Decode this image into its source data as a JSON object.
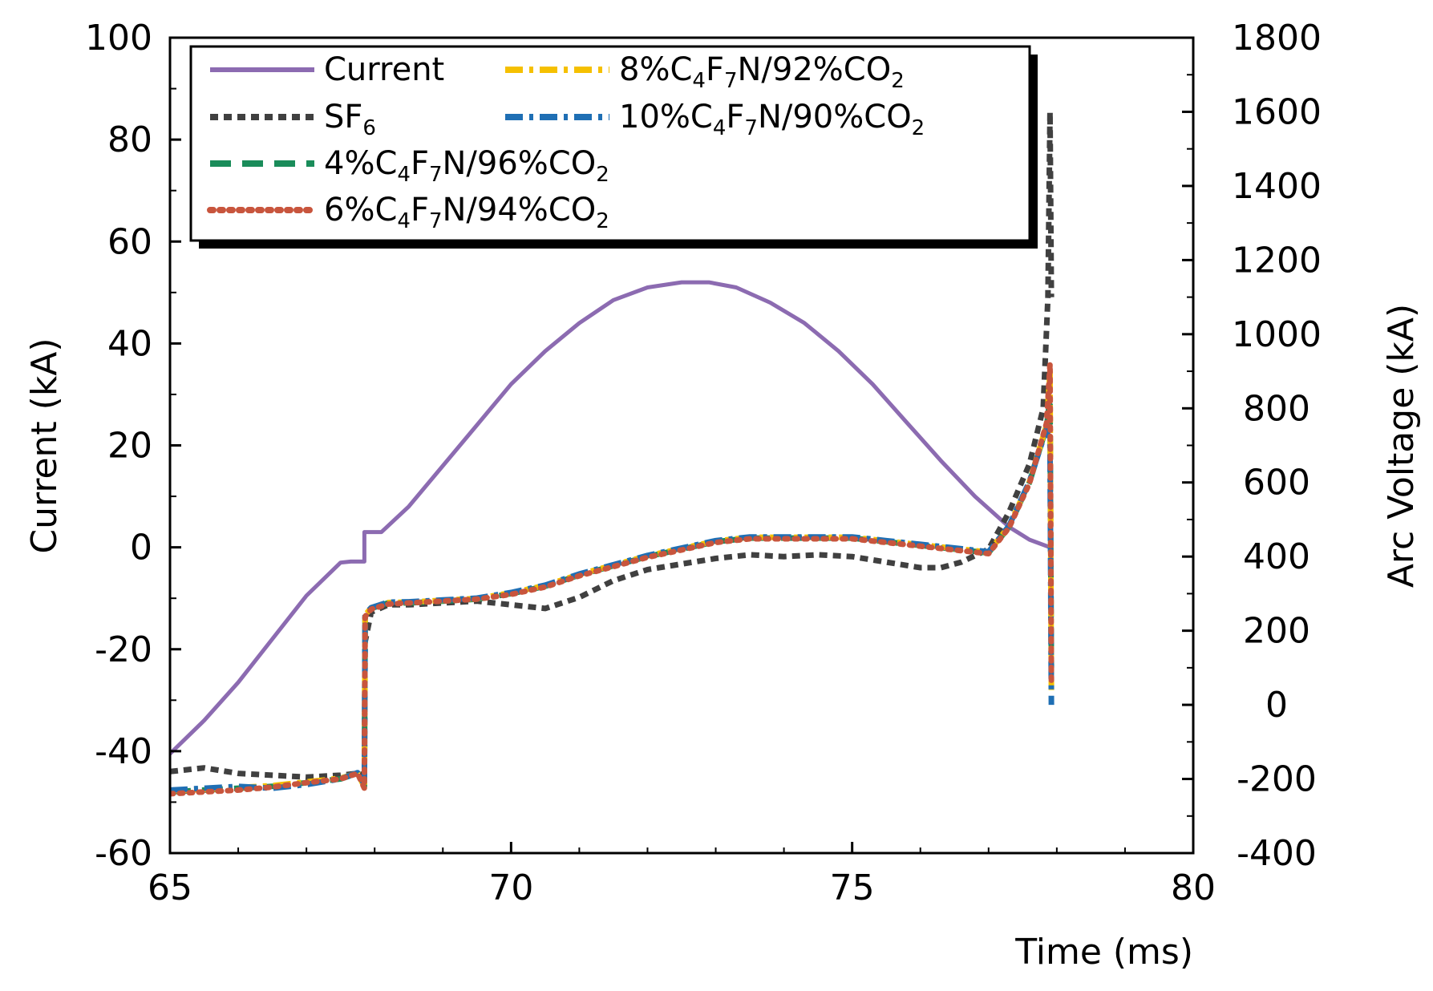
{
  "chart_data": {
    "type": "line",
    "title": "",
    "xlabel": "Time (ms)",
    "ylabel": "Current (kA)",
    "y2label": "Arc Voltage (kA)",
    "xlim": [
      65,
      80
    ],
    "ylim": [
      -60,
      100
    ],
    "y2lim": [
      -400,
      1800
    ],
    "x_ticks": [
      65,
      70,
      75,
      80
    ],
    "y_ticks": [
      -60,
      -40,
      -20,
      0,
      20,
      40,
      60,
      80,
      100
    ],
    "y2_ticks": [
      -400,
      -200,
      0,
      200,
      400,
      600,
      800,
      1000,
      1200,
      1400,
      1600,
      1800
    ],
    "grid": false,
    "legend_position": "top-left",
    "series": [
      {
        "name": "Current",
        "legend_main": "Current",
        "legend_parts": [],
        "axis": "left",
        "color": "#8c6bb1",
        "style": "solid",
        "x": [
          65,
          65.5,
          66,
          66.5,
          67,
          67.5,
          67.65,
          67.85,
          67.85,
          68.1,
          68.5,
          69,
          69.5,
          70,
          70.5,
          71,
          71.5,
          72,
          72.5,
          72.9,
          73.3,
          73.8,
          74.3,
          74.8,
          75.3,
          75.8,
          76.3,
          76.8,
          77.3,
          77.6,
          77.9
        ],
        "y": [
          -40.5,
          -34,
          -26.5,
          -18,
          -9.5,
          -3,
          -2.8,
          -2.8,
          3,
          3,
          8,
          16,
          24,
          32,
          38.5,
          44,
          48.5,
          51,
          52,
          52,
          51,
          48,
          44,
          38.5,
          32,
          24.5,
          17,
          10,
          4,
          1.5,
          0
        ]
      },
      {
        "name": "SF6",
        "legend_main": "SF",
        "legend_parts": [
          {
            "t": "6",
            "sub": true
          }
        ],
        "axis": "right",
        "color": "#404040",
        "style": "dashed",
        "x": [
          65,
          65.5,
          66,
          66.5,
          67,
          67.5,
          67.75,
          67.85,
          67.86,
          67.95,
          68.2,
          68.5,
          69,
          69.5,
          70,
          70.5,
          71,
          71.5,
          72,
          72.5,
          73,
          73.5,
          74,
          74.5,
          75,
          75.5,
          76,
          76.3,
          76.6,
          77,
          77.3,
          77.6,
          77.8,
          77.87,
          77.9,
          77.92
        ],
        "y": [
          -180,
          -170,
          -185,
          -190,
          -195,
          -190,
          -185,
          -190,
          170,
          250,
          270,
          270,
          275,
          280,
          270,
          260,
          290,
          335,
          365,
          380,
          395,
          405,
          400,
          405,
          400,
          385,
          370,
          370,
          385,
          420,
          520,
          650,
          800,
          1100,
          1600,
          1100
        ]
      },
      {
        "name": "4%C4F7N/96%CO2",
        "legend_main": "4%C",
        "legend_parts": [
          {
            "t": "4",
            "sub": true
          },
          {
            "t": "F",
            "sub": false
          },
          {
            "t": "7",
            "sub": true
          },
          {
            "t": "N/96%CO",
            "sub": false
          },
          {
            "t": "2",
            "sub": true
          }
        ],
        "axis": "right",
        "color": "#1a8c5a",
        "style": "dash",
        "x": [
          65,
          65.5,
          66,
          66.5,
          67,
          67.5,
          67.75,
          67.85,
          67.86,
          67.95,
          68.2,
          68.5,
          69,
          69.5,
          70,
          70.5,
          71,
          71.5,
          72,
          72.5,
          73,
          73.5,
          74,
          74.5,
          75,
          75.5,
          76,
          76.5,
          77,
          77.3,
          77.6,
          77.85,
          77.9,
          77.92
        ],
        "y": [
          -235,
          -230,
          -225,
          -220,
          -210,
          -200,
          -185,
          -220,
          240,
          260,
          275,
          275,
          280,
          285,
          300,
          320,
          350,
          375,
          400,
          420,
          440,
          450,
          450,
          450,
          450,
          440,
          430,
          420,
          410,
          480,
          600,
          750,
          830,
          100
        ]
      },
      {
        "name": "6%C4F7N/94%CO2",
        "legend_main": "6%C",
        "legend_parts": [
          {
            "t": "4",
            "sub": true
          },
          {
            "t": "F",
            "sub": false
          },
          {
            "t": "7",
            "sub": true
          },
          {
            "t": "N/94%CO",
            "sub": false
          },
          {
            "t": "2",
            "sub": true
          }
        ],
        "axis": "right",
        "color": "#c8553d",
        "style": "dot",
        "x": [
          65,
          65.5,
          66,
          66.5,
          67,
          67.5,
          67.75,
          67.85,
          67.86,
          67.95,
          68.2,
          68.5,
          69,
          69.5,
          70,
          70.5,
          71,
          71.5,
          72,
          72.5,
          73,
          73.5,
          74,
          74.5,
          75,
          75.5,
          76,
          76.5,
          77,
          77.3,
          77.6,
          77.85,
          77.9,
          77.92
        ],
        "y": [
          -240,
          -235,
          -230,
          -222,
          -210,
          -200,
          -185,
          -225,
          238,
          258,
          272,
          275,
          280,
          285,
          298,
          318,
          348,
          373,
          398,
          418,
          438,
          448,
          448,
          448,
          448,
          438,
          428,
          418,
          408,
          478,
          598,
          760,
          920,
          60
        ]
      },
      {
        "name": "8%C4F7N/92%CO2",
        "legend_main": "8%C",
        "legend_parts": [
          {
            "t": "4",
            "sub": true
          },
          {
            "t": "F",
            "sub": false
          },
          {
            "t": "7",
            "sub": true
          },
          {
            "t": "N/92%CO",
            "sub": false
          },
          {
            "t": "2",
            "sub": true
          }
        ],
        "axis": "right",
        "color": "#f5c000",
        "style": "dashdot",
        "x": [
          65,
          65.5,
          66,
          66.5,
          67,
          67.5,
          67.75,
          67.85,
          67.86,
          67.95,
          68.2,
          68.5,
          69,
          69.5,
          70,
          70.5,
          71,
          71.5,
          72,
          72.5,
          73,
          73.5,
          74,
          74.5,
          75,
          75.5,
          76,
          76.5,
          77,
          77.3,
          77.6,
          77.85,
          77.9,
          77.92
        ],
        "y": [
          -232,
          -228,
          -223,
          -218,
          -208,
          -198,
          -184,
          -222,
          242,
          262,
          276,
          277,
          282,
          287,
          302,
          322,
          352,
          377,
          402,
          422,
          442,
          452,
          452,
          452,
          452,
          442,
          432,
          422,
          412,
          482,
          602,
          755,
          900,
          40
        ]
      },
      {
        "name": "10%C4F7N/90%CO2",
        "legend_main": "10%C",
        "legend_parts": [
          {
            "t": "4",
            "sub": true
          },
          {
            "t": "F",
            "sub": false
          },
          {
            "t": "7",
            "sub": true
          },
          {
            "t": "N/90%CO",
            "sub": false
          },
          {
            "t": "2",
            "sub": true
          }
        ],
        "axis": "right",
        "color": "#1f6fb4",
        "style": "dashdot",
        "x": [
          65,
          65.5,
          66,
          66.5,
          67,
          67.5,
          67.75,
          67.85,
          67.86,
          67.95,
          68.2,
          68.5,
          69,
          69.5,
          70,
          70.5,
          71,
          71.5,
          72,
          72.5,
          73,
          73.5,
          74,
          74.5,
          75,
          75.5,
          76,
          76.5,
          77,
          77.3,
          77.6,
          77.85,
          77.9,
          77.92
        ],
        "y": [
          -230,
          -225,
          -220,
          -225,
          -215,
          -200,
          -183,
          -215,
          245,
          262,
          277,
          278,
          283,
          288,
          303,
          323,
          353,
          378,
          403,
          423,
          443,
          453,
          453,
          453,
          453,
          443,
          433,
          423,
          413,
          483,
          603,
          745,
          700,
          0
        ]
      }
    ]
  }
}
